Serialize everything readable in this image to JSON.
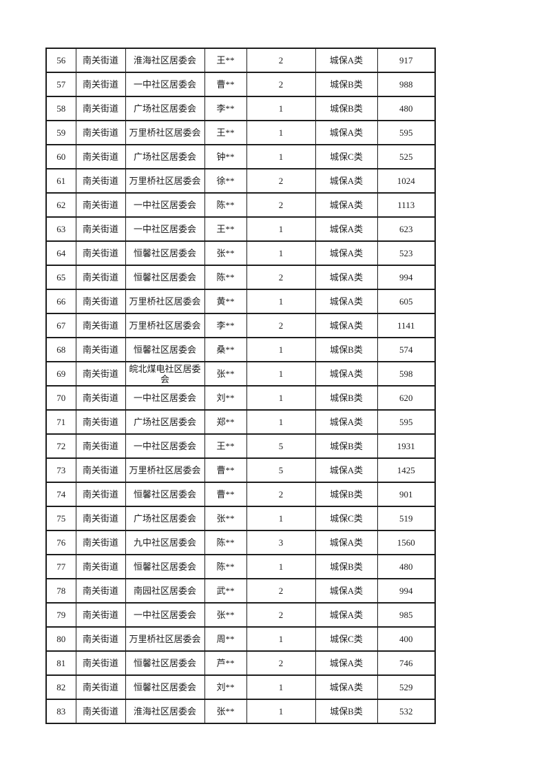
{
  "page": {
    "background_color": "#ffffff",
    "text_color": "#1c1c1c",
    "border_color": "#1c1c1c"
  },
  "table": {
    "rows": [
      {
        "serial": "56",
        "street": "南关街道",
        "community": "淮海社区居委会",
        "name": "王**",
        "count": "2",
        "category": "城保A类",
        "amount": "917"
      },
      {
        "serial": "57",
        "street": "南关街道",
        "community": "一中社区居委会",
        "name": "曹**",
        "count": "2",
        "category": "城保B类",
        "amount": "988"
      },
      {
        "serial": "58",
        "street": "南关街道",
        "community": "广场社区居委会",
        "name": "李**",
        "count": "1",
        "category": "城保B类",
        "amount": "480"
      },
      {
        "serial": "59",
        "street": "南关街道",
        "community": "万里桥社区居委会",
        "name": "王**",
        "count": "1",
        "category": "城保A类",
        "amount": "595"
      },
      {
        "serial": "60",
        "street": "南关街道",
        "community": "广场社区居委会",
        "name": "钟**",
        "count": "1",
        "category": "城保C类",
        "amount": "525"
      },
      {
        "serial": "61",
        "street": "南关街道",
        "community": "万里桥社区居委会",
        "name": "徐**",
        "count": "2",
        "category": "城保A类",
        "amount": "1024"
      },
      {
        "serial": "62",
        "street": "南关街道",
        "community": "一中社区居委会",
        "name": "陈**",
        "count": "2",
        "category": "城保A类",
        "amount": "1113"
      },
      {
        "serial": "63",
        "street": "南关街道",
        "community": "一中社区居委会",
        "name": "王**",
        "count": "1",
        "category": "城保A类",
        "amount": "623"
      },
      {
        "serial": "64",
        "street": "南关街道",
        "community": "恒馨社区居委会",
        "name": "张**",
        "count": "1",
        "category": "城保A类",
        "amount": "523"
      },
      {
        "serial": "65",
        "street": "南关街道",
        "community": "恒馨社区居委会",
        "name": "陈**",
        "count": "2",
        "category": "城保A类",
        "amount": "994"
      },
      {
        "serial": "66",
        "street": "南关街道",
        "community": "万里桥社区居委会",
        "name": "黄**",
        "count": "1",
        "category": "城保A类",
        "amount": "605"
      },
      {
        "serial": "67",
        "street": "南关街道",
        "community": "万里桥社区居委会",
        "name": "李**",
        "count": "2",
        "category": "城保A类",
        "amount": "1141"
      },
      {
        "serial": "68",
        "street": "南关街道",
        "community": "恒馨社区居委会",
        "name": "桑**",
        "count": "1",
        "category": "城保B类",
        "amount": "574"
      },
      {
        "serial": "69",
        "street": "南关街道",
        "community": "皖北煤电社区居委会",
        "name": "张**",
        "count": "1",
        "category": "城保A类",
        "amount": "598"
      },
      {
        "serial": "70",
        "street": "南关街道",
        "community": "一中社区居委会",
        "name": "刘**",
        "count": "1",
        "category": "城保B类",
        "amount": "620"
      },
      {
        "serial": "71",
        "street": "南关街道",
        "community": "广场社区居委会",
        "name": "郑**",
        "count": "1",
        "category": "城保A类",
        "amount": "595"
      },
      {
        "serial": "72",
        "street": "南关街道",
        "community": "一中社区居委会",
        "name": "王**",
        "count": "5",
        "category": "城保B类",
        "amount": "1931"
      },
      {
        "serial": "73",
        "street": "南关街道",
        "community": "万里桥社区居委会",
        "name": "曹**",
        "count": "5",
        "category": "城保A类",
        "amount": "1425"
      },
      {
        "serial": "74",
        "street": "南关街道",
        "community": "恒馨社区居委会",
        "name": "曹**",
        "count": "2",
        "category": "城保B类",
        "amount": "901"
      },
      {
        "serial": "75",
        "street": "南关街道",
        "community": "广场社区居委会",
        "name": "张**",
        "count": "1",
        "category": "城保C类",
        "amount": "519"
      },
      {
        "serial": "76",
        "street": "南关街道",
        "community": "九中社区居委会",
        "name": "陈**",
        "count": "3",
        "category": "城保A类",
        "amount": "1560"
      },
      {
        "serial": "77",
        "street": "南关街道",
        "community": "恒馨社区居委会",
        "name": "陈**",
        "count": "1",
        "category": "城保B类",
        "amount": "480"
      },
      {
        "serial": "78",
        "street": "南关街道",
        "community": "南园社区居委会",
        "name": "武**",
        "count": "2",
        "category": "城保A类",
        "amount": "994"
      },
      {
        "serial": "79",
        "street": "南关街道",
        "community": "一中社区居委会",
        "name": "张**",
        "count": "2",
        "category": "城保A类",
        "amount": "985"
      },
      {
        "serial": "80",
        "street": "南关街道",
        "community": "万里桥社区居委会",
        "name": "周**",
        "count": "1",
        "category": "城保C类",
        "amount": "400"
      },
      {
        "serial": "81",
        "street": "南关街道",
        "community": "恒馨社区居委会",
        "name": "芦**",
        "count": "2",
        "category": "城保A类",
        "amount": "746"
      },
      {
        "serial": "82",
        "street": "南关街道",
        "community": "恒馨社区居委会",
        "name": "刘**",
        "count": "1",
        "category": "城保A类",
        "amount": "529"
      },
      {
        "serial": "83",
        "street": "南关街道",
        "community": "淮海社区居委会",
        "name": "张**",
        "count": "1",
        "category": "城保B类",
        "amount": "532"
      }
    ]
  }
}
